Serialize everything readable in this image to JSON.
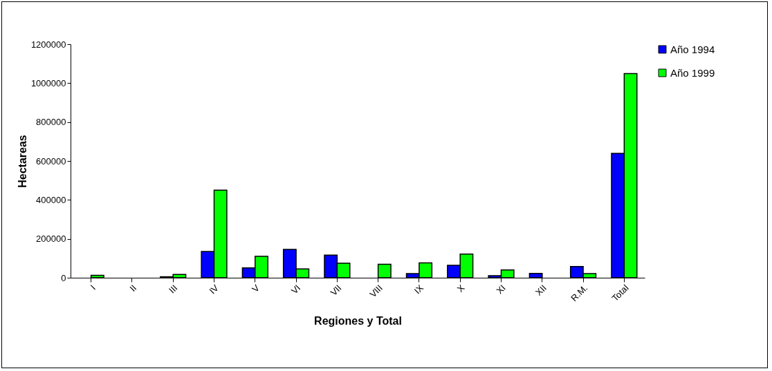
{
  "chart_data": {
    "type": "bar",
    "xlabel": "Regiones y Total",
    "ylabel": "Hectareas",
    "categories": [
      "I",
      "II",
      "III",
      "IV",
      "V",
      "VI",
      "VII",
      "VIII",
      "IX",
      "X",
      "XI",
      "XII",
      "R.M.",
      "Total"
    ],
    "series": [
      {
        "name": "Año 1994",
        "color": "#0000ff",
        "values": [
          0,
          0,
          5000,
          135000,
          51000,
          146000,
          116000,
          0,
          21000,
          64000,
          11000,
          22000,
          58000,
          639000
        ]
      },
      {
        "name": "Año 1999",
        "color": "#00ff00",
        "values": [
          12000,
          0,
          17000,
          450000,
          110000,
          45000,
          75000,
          69000,
          76000,
          122000,
          40000,
          0,
          21000,
          1049000
        ]
      }
    ],
    "ylim": [
      0,
      1200000
    ],
    "yticks": [
      0,
      200000,
      400000,
      600000,
      800000,
      1000000,
      1200000
    ],
    "legend": "right"
  }
}
